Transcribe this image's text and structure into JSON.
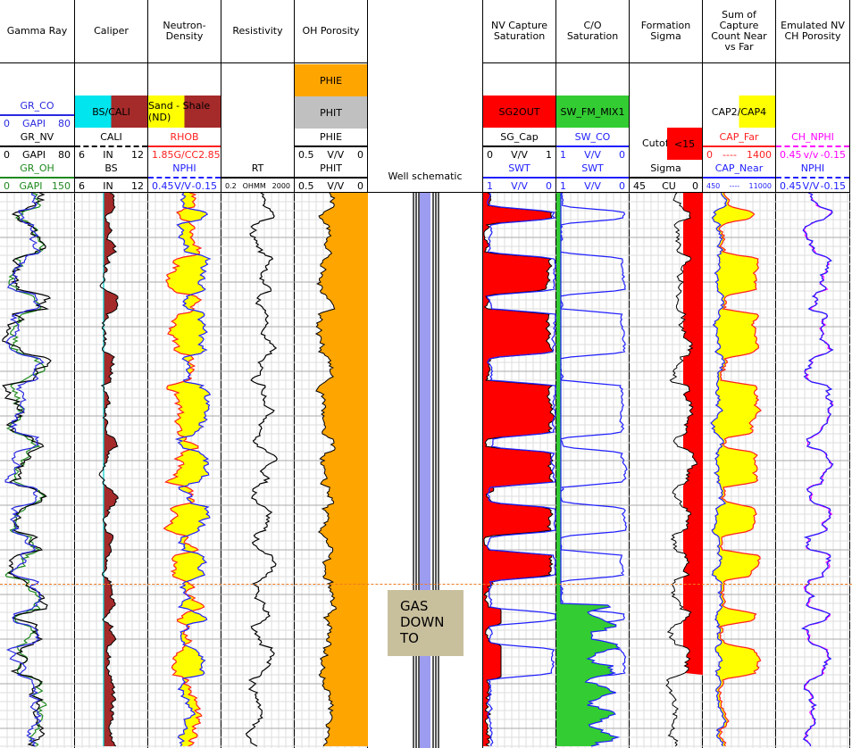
{
  "tracks": [
    {
      "title": "Gamma Ray",
      "curves": [
        {
          "name": "GR_CO",
          "scale": [
            "0",
            "GAPI",
            "80"
          ],
          "color": "#2a2ae0"
        },
        {
          "name": "GR_NV",
          "scale": [
            "0",
            "GAPI",
            "80"
          ],
          "color": "#000000"
        },
        {
          "name": "GR_OH",
          "scale": [
            "0",
            "GAPI",
            "150"
          ],
          "color": "#1e8a1e"
        }
      ]
    },
    {
      "title": "Caliper",
      "fill": {
        "label": "BS/CALI",
        "colors": [
          "#00e5ee",
          "#a52a2a"
        ]
      },
      "curves": [
        {
          "name": "CALI",
          "scale": [
            "6",
            "IN",
            "12"
          ],
          "color": "#000000"
        },
        {
          "name": "BS",
          "scale": [
            "6",
            "IN",
            "12"
          ],
          "color": "#000000"
        }
      ]
    },
    {
      "title": "Neutron-Density",
      "fill": {
        "label": "Sand - Shale (ND)",
        "colors": [
          "#ffff00",
          "#a52a2a"
        ]
      },
      "curves": [
        {
          "name": "RHOB",
          "scale": [
            "1.85",
            "G/CC",
            "2.85"
          ],
          "color": "#ff2020"
        },
        {
          "name": "NPHI",
          "scale": [
            "0.45",
            "V/V",
            "-0.15"
          ],
          "color": "#2020ff"
        }
      ]
    },
    {
      "title": "Resistivity",
      "curves": [
        {
          "name": "RT",
          "scale": [
            "0.2",
            "OHMM",
            "2000"
          ],
          "color": "#000000"
        }
      ]
    },
    {
      "title": "OH Porosity",
      "fills": [
        {
          "label": "PHIE",
          "color": "#ffa500"
        },
        {
          "label": "PHIT",
          "color": "#c0c0c0"
        }
      ],
      "curves": [
        {
          "name": "PHIE",
          "scale": [
            "0.5",
            "V/V",
            "0"
          ],
          "color": "#000000"
        },
        {
          "name": "PHIT",
          "scale": [
            "0.5",
            "V/V",
            "0"
          ],
          "color": "#000000"
        }
      ]
    },
    {
      "title": "Well schematic"
    },
    {
      "title": "NV Capture Saturation",
      "fill": {
        "label": "SG2OUT",
        "colors": [
          "#ff0000"
        ]
      },
      "curves": [
        {
          "name": "SG_Cap",
          "scale": [
            "0",
            "V/V",
            "1"
          ],
          "color": "#000000"
        },
        {
          "name": "SWT",
          "scale": [
            "1",
            "V/V",
            "0"
          ],
          "color": "#2020ff"
        }
      ]
    },
    {
      "title": "C/O Saturation",
      "fill": {
        "label": "SW_FM_MIX1",
        "colors": [
          "#33cc33"
        ]
      },
      "curves": [
        {
          "name": "SW_CO",
          "scale": [
            "1",
            "V/V",
            "0"
          ],
          "color": "#2020ff"
        },
        {
          "name": "SWT",
          "scale": [
            "1",
            "V/V",
            "0"
          ],
          "color": "#2020ff"
        }
      ]
    },
    {
      "title": "Formation Sigma",
      "cutoff": {
        "label": "Cutoff",
        "value": "<15",
        "color": "#ff0000"
      },
      "curves": [
        {
          "name": "Sigma",
          "scale": [
            "45",
            "CU",
            "0"
          ],
          "color": "#000000"
        }
      ]
    },
    {
      "title": "Sum of Capture Count Near vs Far",
      "fill": {
        "label": "CAP2/CAP4",
        "colors": [
          "#ffff00"
        ]
      },
      "curves": [
        {
          "name": "CAP_Far",
          "scale": [
            "0",
            "----",
            "1400"
          ],
          "color": "#ff2020"
        },
        {
          "name": "CAP_Near",
          "scale": [
            "450",
            "----",
            "11000"
          ],
          "color": "#2020ff"
        }
      ]
    },
    {
      "title": "Emulated NV CH Porosity",
      "curves": [
        {
          "name": "CH_NPHI",
          "scale": [
            "0.45",
            "v/v",
            "-0.15"
          ],
          "color": "#ff00ff"
        },
        {
          "name": "NPHI",
          "scale": [
            "0.45",
            "V/V",
            "-0.15"
          ],
          "color": "#2020ff"
        }
      ]
    }
  ],
  "gas_label": "GAS DOWN TO"
}
